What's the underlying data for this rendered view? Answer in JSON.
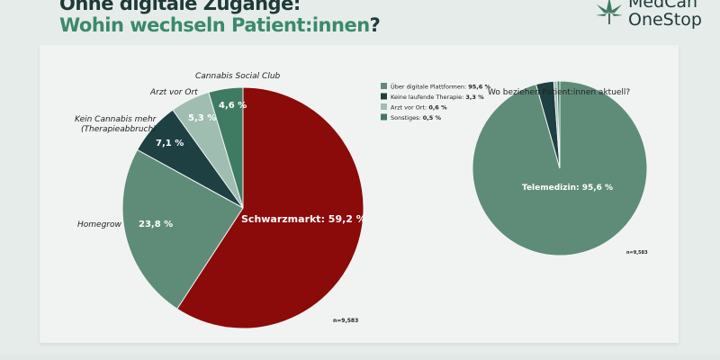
{
  "header": {
    "title_line1": "Ohne digitale Zugänge:",
    "title_line2_main": "Wohin wechseln Patient:innen",
    "title_line2_end": "?"
  },
  "logo": {
    "line1": "MedCan",
    "line2": "OneStop"
  },
  "colors": {
    "red": "#8b0a0a",
    "green": "#5f8c79",
    "dark": "#1f4043",
    "light": "#9fbdb1",
    "mid": "#3f7b63"
  },
  "chart_data": [
    {
      "type": "pie",
      "title": "",
      "start": "top",
      "direction": "clockwise",
      "slices": [
        {
          "label": "Schwarzmarkt",
          "value": 59.2,
          "text": "Schwarzmarkt: 59,2 %",
          "color": "#8b0a0a"
        },
        {
          "label": "Homegrow",
          "value": 23.8,
          "text": "23,8 %",
          "color": "#5f8c79"
        },
        {
          "label": "Kein Cannabis mehr (Therapieabbruch)",
          "value": 7.1,
          "text": "7,1 %",
          "color": "#1f4043"
        },
        {
          "label": "Arzt vor Ort",
          "value": 5.3,
          "text": "5,3 %",
          "color": "#9fbdb1"
        },
        {
          "label": "Cannabis Social Club",
          "value": 4.6,
          "text": "4,6 %",
          "color": "#3f7b63"
        }
      ],
      "outer_labels": {
        "homegrow": "Homegrow",
        "kein1": "Kein Cannabis mehr",
        "kein2": "(Therapieabbruch)",
        "arzt": "Arzt vor Ort",
        "csc": "Cannabis Social Club"
      },
      "n": "n=9,583"
    },
    {
      "type": "pie",
      "title": "Wo beziehen Patient:innen aktuell?",
      "start": "top",
      "direction": "clockwise",
      "legend": "top-left",
      "slices": [
        {
          "label": "Über digitale Plattformen",
          "value": 95.6,
          "vtext": "95,6 %",
          "color": "#5f8c79"
        },
        {
          "label": "Keine laufende Therapie",
          "value": 3.3,
          "vtext": "3,3 %",
          "color": "#1f4043"
        },
        {
          "label": "Arzt vor Ort",
          "value": 0.6,
          "vtext": "0,6 %",
          "color": "#9fbdb1"
        },
        {
          "label": "Sonstiges",
          "value": 0.5,
          "vtext": "0,5 %",
          "color": "#3f7b63"
        }
      ],
      "center_label": "Telemedizin: 95,6 %",
      "n": "n=9,583"
    }
  ]
}
